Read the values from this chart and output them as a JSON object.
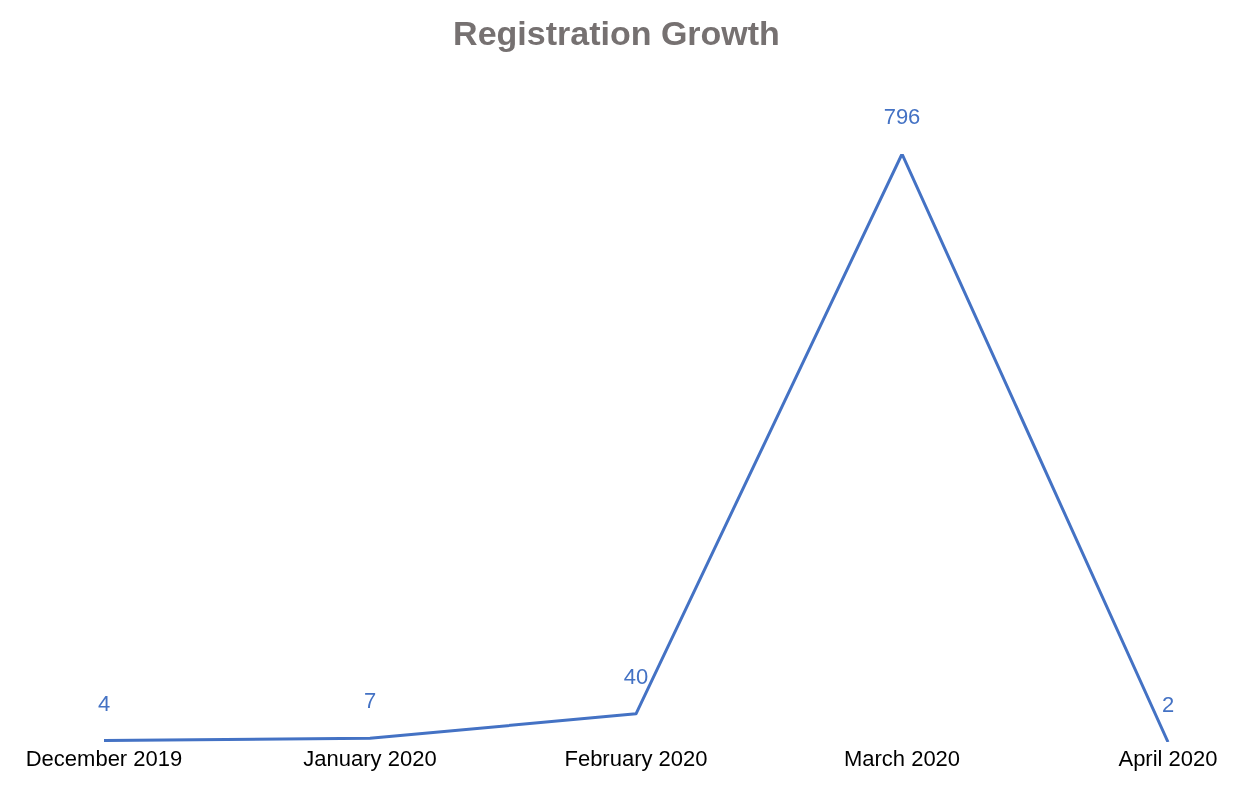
{
  "chart_data": {
    "type": "line",
    "title": "Registration Growth",
    "categories": [
      "December 2019",
      "January 2020",
      "February 2020",
      "March 2020",
      "April 2020"
    ],
    "series": [
      {
        "color": "#4472c4",
        "values": [
          4,
          7,
          40,
          796,
          2
        ]
      }
    ],
    "data_labels": true,
    "grid": false,
    "legend": false,
    "marker": "none",
    "line_style": "solid"
  }
}
